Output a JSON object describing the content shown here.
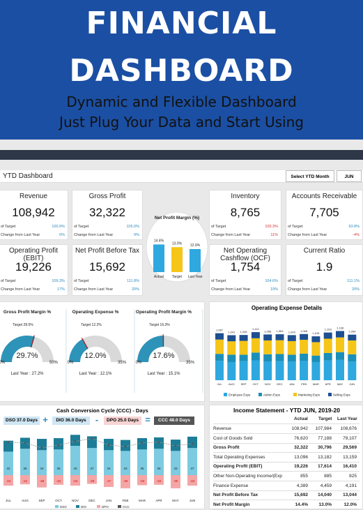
{
  "hero": {
    "line1": "FINANCIAL",
    "line2": "DASHBOARD",
    "sub1": "Dynamic and Flexible Dashboard",
    "sub2": "Just Plug Your Data and Start Using"
  },
  "dash": {
    "title": "YTD Dashboard",
    "select_label": "Select YTD Month",
    "month": "JUN"
  },
  "kpis": [
    {
      "title": "Revenue",
      "value": "108,942",
      "target_label": "of Target",
      "target_val": "100.9%",
      "change_label": "Change from Last Year",
      "change_val": "0%"
    },
    {
      "title": "Gross Profit",
      "value": "32,322",
      "target_label": "of Target",
      "target_val": "105.0%",
      "change_label": "Change from Last Year",
      "change_val": "9%"
    },
    {
      "title": "Inventory",
      "value": "8,765",
      "target_label": "of Target",
      "target_val": "105.3%",
      "change_label": "Change from Last Year",
      "change_val": "11%"
    },
    {
      "title": "Accounts Receivable",
      "value": "7,705",
      "target_label": "of Target",
      "target_val": "93.8%",
      "change_label": "Change from Last Year",
      "change_val": "-4%"
    },
    {
      "title": "Operating Profit (EBIT)",
      "value": "19,226",
      "target_label": "of Target",
      "target_val": "109.3%",
      "change_label": "Change from Last Year",
      "change_val": "17%"
    },
    {
      "title": "Net Profit Before Tax",
      "value": "15,692",
      "target_label": "of Target",
      "target_val": "111.8%",
      "change_label": "Change from Last Year",
      "change_val": "20%"
    },
    {
      "title": "Net Operating Cashflow (OCF)",
      "value": "1,754",
      "target_label": "of Target",
      "target_val": "104.6%",
      "change_label": "Change from Last Year",
      "change_val": "19%"
    },
    {
      "title": "Current Ratio",
      "value": "1.9",
      "target_label": "of Target",
      "target_val": "111.1%",
      "change_label": "Change from Last Year",
      "change_val": "20%"
    }
  ],
  "npm": {
    "title": "Net Profit Margin (%)",
    "labels": [
      "Actual",
      "Target",
      "Last Year"
    ],
    "values": [
      "14.4%",
      "13.0%",
      "12.0%"
    ],
    "nums": [
      14.4,
      13.0,
      12.0
    ],
    "colors": [
      "#2ea8df",
      "#f5c518",
      "#2ea8df"
    ]
  },
  "gauges": [
    {
      "title": "Gross Profit Margin %",
      "target": "Target 28.5%",
      "value": "29.7%",
      "min": "0%",
      "max": "50%",
      "last": "Last Year : 27.2%",
      "frac": 0.594
    },
    {
      "title": "Operating Expense %",
      "target": "Target 12.2%",
      "value": "12.0%",
      "min": "0%",
      "max": "35%",
      "last": "Last Year : 12.1%",
      "frac": 0.343
    },
    {
      "title": "Operating Profit Margin %",
      "target": "Target 16.3%",
      "value": "17.6%",
      "min": "0%",
      "max": "35%",
      "last": "Last Year : 15.1%",
      "frac": 0.503
    }
  ],
  "chart_data": [
    {
      "type": "bar",
      "title": "Operating Expense Details",
      "categories": [
        "JUL",
        "AUG",
        "SEP",
        "OCT",
        "NOV",
        "DEC",
        "JAN",
        "FEB",
        "MAR",
        "APR",
        "MAY",
        "JUN"
      ],
      "totals": [
        "1,087",
        "1,041",
        "1,046",
        "1,112",
        "1,058",
        "1,063",
        "1,043",
        "1,068",
        "1,015",
        "1,103",
        "1,138",
        "1,054"
      ],
      "series": [
        {
          "name": "Employee Exps",
          "values": [
            450,
            420,
            440,
            460,
            430,
            440,
            430,
            445,
            420,
            455,
            470,
            430
          ],
          "color": "#2ea8df"
        },
        {
          "name": "Admin Exps",
          "values": [
            160,
            170,
            150,
            180,
            170,
            165,
            160,
            170,
            150,
            175,
            180,
            170
          ],
          "color": "#1b8fb8"
        },
        {
          "name": "Marketing Exps",
          "values": [
            330,
            310,
            320,
            330,
            320,
            320,
            315,
            320,
            310,
            330,
            340,
            320
          ],
          "color": "#f5c518"
        },
        {
          "name": "Selling Exps",
          "values": [
            147,
            141,
            136,
            142,
            138,
            138,
            138,
            133,
            135,
            143,
            148,
            134
          ],
          "color": "#1d4f91"
        }
      ],
      "legend": "bottom"
    },
    {
      "type": "bar",
      "title": "Cash Conversion Cycle (CCC) - Days",
      "categories": [
        "JUL",
        "AUG",
        "SEP",
        "OCT",
        "NOV",
        "DEC",
        "JAN",
        "FEB",
        "MAR",
        "APR",
        "MAY",
        "JUN"
      ],
      "series": [
        {
          "name": "DSO",
          "values": [
            32,
            36,
            34,
            35,
            40,
            37,
            34,
            33,
            35,
            36,
            33,
            37
          ]
        },
        {
          "name": "DIO",
          "values": [
            30,
            30,
            31,
            31,
            30,
            32,
            31,
            30,
            31,
            31,
            31,
            31
          ]
        },
        {
          "name": "DPO",
          "values": [
            -24,
            -21,
            -28,
            -22,
            -24,
            -20,
            -27,
            -30,
            -23,
            -22,
            -30,
            -24
          ]
        },
        {
          "name": "CCC",
          "values": [
            45,
            44,
            37,
            41,
            46,
            50,
            41,
            39,
            44,
            45,
            40,
            43
          ]
        }
      ],
      "legend": "bottom"
    }
  ],
  "ccc": {
    "dso": "DSO 37.0 Days",
    "plus": "+",
    "dio": "DIO 36.0 Days",
    "minus": "-",
    "dpo": "DPO 25.0 Days",
    "eq": "=",
    "res": "CCC 48.0 Days",
    "dso_labels": [
      "32",
      "36",
      "34",
      "35",
      "40",
      "37",
      "34",
      "33",
      "35",
      "36",
      "33",
      "37"
    ],
    "dpo_labels": [
      "-24",
      "-21",
      "-28",
      "-22",
      "-24",
      "-20",
      "-27",
      "-30",
      "-23",
      "-22",
      "-30",
      "-24"
    ],
    "legend": [
      "DSO",
      "DIO",
      "DPO",
      "CCC"
    ]
  },
  "income": {
    "title": "Income Statement - YTD JUN, 2019-20",
    "cols": [
      "Actual",
      "Target",
      "Last Year"
    ],
    "rows": [
      {
        "label": "Revenue",
        "a": "108,942",
        "t": "107,984",
        "l": "108,676",
        "bold": false
      },
      {
        "label": "Cost of Goods Sold",
        "a": "76,620",
        "t": "77,188",
        "l": "79,107",
        "bold": false
      },
      {
        "label": "Gross Profit",
        "a": "32,322",
        "t": "30,796",
        "l": "29,569",
        "bold": true
      },
      {
        "label": "Total Operating Expenses",
        "a": "13,096",
        "t": "13,182",
        "l": "13,159",
        "bold": false
      },
      {
        "label": "Operating Profit (EBIT)",
        "a": "19,226",
        "t": "17,614",
        "l": "16,410",
        "bold": true
      },
      {
        "label": "Other Non-Operating Income/(Exp",
        "a": "855",
        "t": "885",
        "l": "825",
        "bold": false
      },
      {
        "label": "Finance Expense",
        "a": "4,389",
        "t": "4,459",
        "l": "4,191",
        "bold": false
      },
      {
        "label": "Net Profit Before Tax",
        "a": "15,692",
        "t": "14,040",
        "l": "13,044",
        "bold": true
      },
      {
        "label": "Net Profit Margin",
        "a": "14.4%",
        "t": "13.0%",
        "l": "12.0%",
        "bold": true
      }
    ]
  }
}
